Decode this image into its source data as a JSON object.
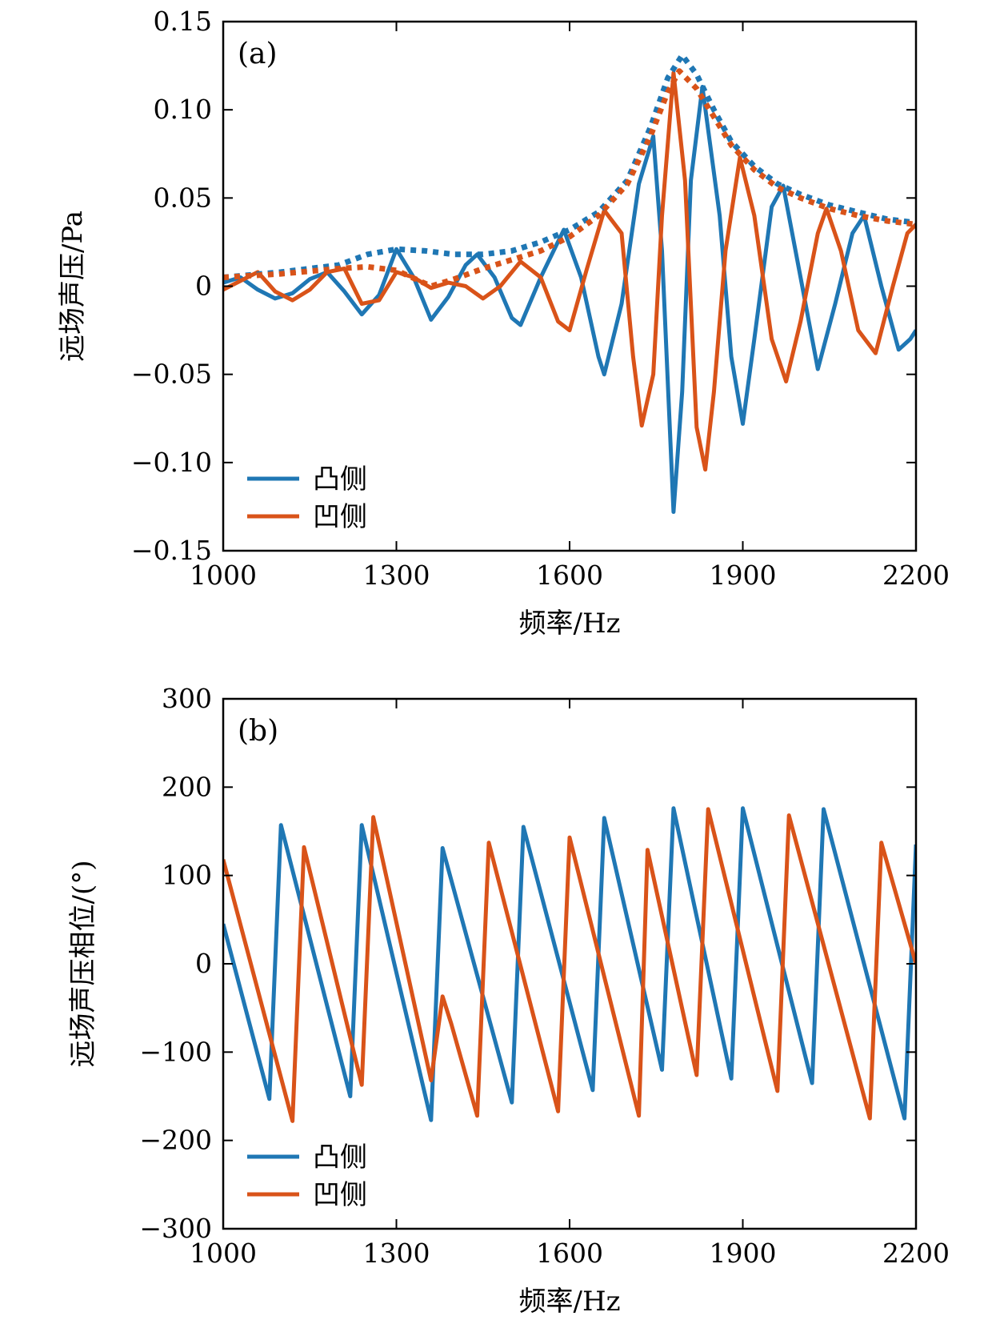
{
  "colors": {
    "convex": "#1f77b4",
    "concave": "#d95319",
    "axis": "#000000"
  },
  "chart_data": [
    {
      "type": "line",
      "panel_label": "(a)",
      "xlabel": "频率/Hz",
      "ylabel": "远场声压/Pa",
      "xlim": [
        1000,
        2200
      ],
      "ylim": [
        -0.15,
        0.15
      ],
      "xticks": [
        1000,
        1300,
        1600,
        1900,
        2200
      ],
      "xtick_labels": [
        "1000",
        "1300",
        "1600",
        "1900",
        "2200"
      ],
      "yticks": [
        0.15,
        0.1,
        0.05,
        0,
        -0.05,
        -0.1,
        -0.15
      ],
      "ytick_labels": [
        "0.15",
        "0.10",
        "0.05",
        "0",
        "−0.05",
        "−0.10",
        "−0.15"
      ],
      "legend": {
        "position": "bottom-left",
        "entries": [
          "凸侧",
          "凹侧"
        ]
      },
      "series": [
        {
          "name": "凸侧",
          "style": "solid",
          "color": "convex",
          "x": [
            1000,
            1030,
            1060,
            1090,
            1120,
            1150,
            1180,
            1210,
            1240,
            1270,
            1300,
            1330,
            1360,
            1390,
            1420,
            1440,
            1470,
            1500,
            1515,
            1550,
            1590,
            1620,
            1650,
            1660,
            1690,
            1720,
            1745,
            1760,
            1780,
            1795,
            1810,
            1830,
            1860,
            1880,
            1900,
            1920,
            1950,
            1970,
            2000,
            2030,
            2060,
            2090,
            2110,
            2140,
            2170,
            2190,
            2200
          ],
          "y": [
            0.002,
            0.005,
            -0.002,
            -0.007,
            -0.004,
            0.004,
            0.008,
            -0.003,
            -0.016,
            -0.005,
            0.021,
            0.005,
            -0.019,
            -0.006,
            0.012,
            0.018,
            0.005,
            -0.018,
            -0.022,
            0.005,
            0.032,
            0.005,
            -0.04,
            -0.05,
            -0.01,
            0.058,
            0.085,
            0.02,
            -0.128,
            -0.06,
            0.06,
            0.113,
            0.04,
            -0.04,
            -0.078,
            -0.03,
            0.045,
            0.057,
            0.005,
            -0.047,
            -0.01,
            0.03,
            0.04,
            0.0,
            -0.036,
            -0.03,
            -0.025
          ]
        },
        {
          "name": "凹侧",
          "style": "solid",
          "color": "concave",
          "x": [
            1000,
            1030,
            1060,
            1090,
            1120,
            1150,
            1180,
            1210,
            1240,
            1270,
            1300,
            1330,
            1360,
            1390,
            1420,
            1450,
            1480,
            1515,
            1550,
            1580,
            1600,
            1630,
            1660,
            1690,
            1710,
            1725,
            1745,
            1760,
            1780,
            1800,
            1820,
            1835,
            1850,
            1870,
            1895,
            1920,
            1950,
            1975,
            2000,
            2030,
            2045,
            2070,
            2100,
            2130,
            2160,
            2185,
            2200
          ],
          "y": [
            -0.002,
            0.003,
            0.008,
            -0.003,
            -0.008,
            -0.002,
            0.008,
            0.01,
            -0.01,
            -0.008,
            0.008,
            0.005,
            -0.001,
            0.002,
            0.0,
            -0.007,
            0.0,
            0.014,
            0.005,
            -0.02,
            -0.025,
            0.01,
            0.043,
            0.03,
            -0.04,
            -0.079,
            -0.05,
            0.04,
            0.121,
            0.06,
            -0.08,
            -0.104,
            -0.06,
            0.02,
            0.073,
            0.04,
            -0.03,
            -0.054,
            -0.02,
            0.03,
            0.044,
            0.02,
            -0.025,
            -0.038,
            0.0,
            0.03,
            0.035
          ]
        },
        {
          "name": "",
          "style": "dotted",
          "color": "convex",
          "x": [
            1000,
            1100,
            1200,
            1250,
            1300,
            1350,
            1400,
            1450,
            1500,
            1550,
            1600,
            1650,
            1700,
            1740,
            1770,
            1795,
            1820,
            1850,
            1880,
            1920,
            1960,
            2000,
            2050,
            2100,
            2150,
            2200
          ],
          "y": [
            0.005,
            0.008,
            0.012,
            0.018,
            0.021,
            0.02,
            0.018,
            0.018,
            0.02,
            0.025,
            0.032,
            0.042,
            0.06,
            0.09,
            0.118,
            0.131,
            0.12,
            0.1,
            0.082,
            0.068,
            0.058,
            0.052,
            0.046,
            0.042,
            0.038,
            0.036
          ]
        },
        {
          "name": "",
          "style": "dotted",
          "color": "concave",
          "x": [
            1000,
            1100,
            1200,
            1250,
            1300,
            1340,
            1360,
            1400,
            1450,
            1500,
            1550,
            1600,
            1650,
            1700,
            1740,
            1770,
            1790,
            1820,
            1850,
            1880,
            1920,
            1960,
            2000,
            2050,
            2100,
            2150,
            2200
          ],
          "y": [
            0.005,
            0.007,
            0.01,
            0.011,
            0.009,
            0.003,
            0.0,
            0.004,
            0.01,
            0.015,
            0.02,
            0.028,
            0.04,
            0.058,
            0.085,
            0.11,
            0.122,
            0.112,
            0.096,
            0.08,
            0.066,
            0.056,
            0.05,
            0.044,
            0.04,
            0.037,
            0.035
          ]
        }
      ]
    },
    {
      "type": "line",
      "panel_label": "(b)",
      "xlabel": "频率/Hz",
      "ylabel": "远场声压相位/(°)",
      "xlim": [
        1000,
        2200
      ],
      "ylim": [
        -300,
        300
      ],
      "xticks": [
        1000,
        1300,
        1600,
        1900,
        2200
      ],
      "xtick_labels": [
        "1000",
        "1300",
        "1600",
        "1900",
        "2200"
      ],
      "yticks": [
        300,
        200,
        100,
        0,
        -100,
        -200,
        -300
      ],
      "ytick_labels": [
        "300",
        "200",
        "100",
        "0",
        "−100",
        "−200",
        "−300"
      ],
      "legend": {
        "position": "bottom-left",
        "entries": [
          "凸侧",
          "凹侧"
        ]
      },
      "series": [
        {
          "name": "凸侧",
          "style": "solid",
          "color": "convex",
          "x": [
            1000,
            1080,
            1100,
            1220,
            1240,
            1360,
            1380,
            1500,
            1520,
            1640,
            1660,
            1760,
            1780,
            1880,
            1900,
            2020,
            2040,
            2180,
            2200
          ],
          "y": [
            45,
            -153,
            157,
            -150,
            157,
            -177,
            131,
            -157,
            155,
            -143,
            165,
            -120,
            176,
            -130,
            176,
            -135,
            175,
            -175,
            135
          ]
        },
        {
          "name": "凹侧",
          "style": "solid",
          "color": "concave",
          "x": [
            1000,
            1120,
            1140,
            1240,
            1260,
            1360,
            1380,
            1395,
            1440,
            1460,
            1580,
            1600,
            1720,
            1735,
            1820,
            1840,
            1960,
            1980,
            2120,
            2140,
            2200
          ],
          "y": [
            118,
            -178,
            132,
            -137,
            166,
            -132,
            -37,
            -68,
            -172,
            137,
            -167,
            143,
            -172,
            129,
            -126,
            175,
            -144,
            168,
            -175,
            137,
            0
          ]
        }
      ]
    }
  ]
}
